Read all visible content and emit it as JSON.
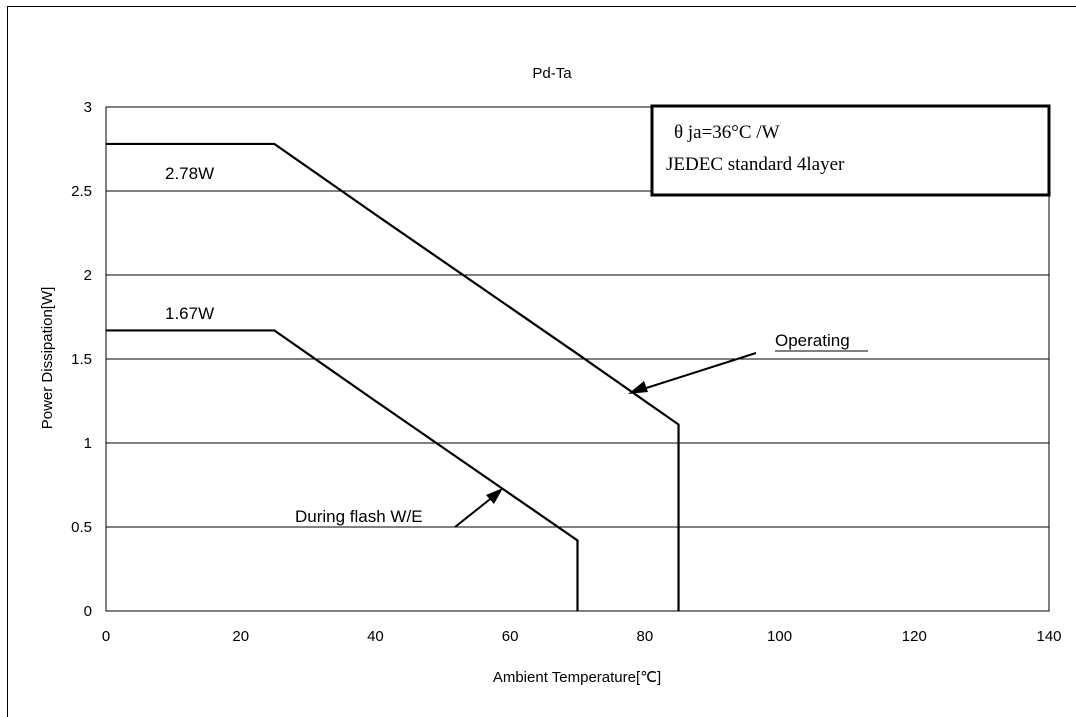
{
  "chart_data": {
    "type": "line",
    "title": "Pd-Ta",
    "xlabel": "Ambient Temperature[℃]",
    "ylabel": "Power Dissipation[W]",
    "xlim": [
      0,
      140
    ],
    "ylim": [
      0,
      3
    ],
    "xticks": [
      0,
      20,
      40,
      60,
      80,
      100,
      120,
      140
    ],
    "yticks": [
      0,
      0.5,
      1,
      1.5,
      2,
      2.5,
      3
    ],
    "ytick_labels": [
      "0",
      "0.5",
      "1",
      "1.5",
      "2",
      "2.5",
      "3"
    ],
    "grid": "horizontal",
    "series": [
      {
        "name": "Operating",
        "x": [
          0,
          25,
          40,
          70,
          85,
          85
        ],
        "y": [
          2.78,
          2.78,
          2.36,
          1.53,
          1.11,
          0
        ]
      },
      {
        "name": "During flash W/E",
        "x": [
          0,
          25,
          40,
          70,
          70
        ],
        "y": [
          1.67,
          1.67,
          1.25,
          0.42,
          0
        ]
      }
    ],
    "annotations": {
      "value_top": "2.78W",
      "value_bottom": "1.67W",
      "operating": "Operating",
      "flash": "During flash W/E"
    },
    "infobox": {
      "line1": "θ ja=36°C /W",
      "line2": "JEDEC standard 4layer"
    }
  }
}
